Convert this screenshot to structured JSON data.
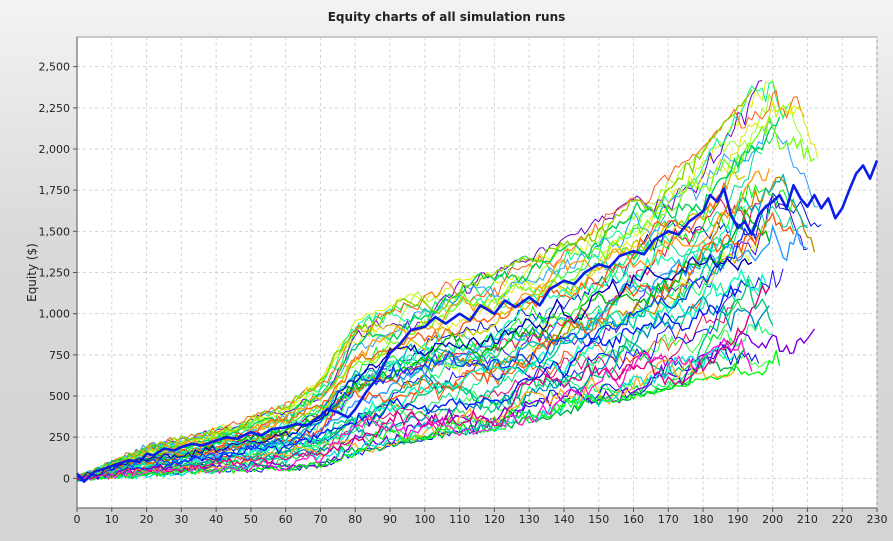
{
  "window": {
    "title": "Equity charts of all simulation runs"
  },
  "chart_data": {
    "type": "line",
    "title": "Equity charts of all simulation runs",
    "xlabel": "",
    "ylabel": "Equity ($)",
    "xlim": [
      0,
      230
    ],
    "ylim": [
      -180,
      2680
    ],
    "grid": true,
    "legend": "none",
    "x_ticks": [
      "0",
      "10",
      "20",
      "30",
      "40",
      "50",
      "60",
      "70",
      "80",
      "90",
      "100",
      "110",
      "120",
      "130",
      "140",
      "150",
      "160",
      "170",
      "180",
      "190",
      "200",
      "210",
      "220",
      "230"
    ],
    "y_ticks": [
      "0",
      "250",
      "500",
      "750",
      "1,000",
      "1,250",
      "1,500",
      "1,750",
      "2,000",
      "2,250",
      "2,500"
    ],
    "runs": 250,
    "run_envelope": {
      "x": [
        0,
        20,
        40,
        60,
        70,
        80,
        100,
        120,
        140,
        160,
        180,
        190,
        200,
        210,
        215
      ],
      "low": [
        0,
        20,
        50,
        60,
        80,
        150,
        250,
        300,
        400,
        500,
        600,
        650,
        600,
        650,
        700
      ],
      "high": [
        0,
        200,
        300,
        450,
        600,
        950,
        1150,
        1250,
        1450,
        1700,
        2000,
        2250,
        2550,
        2300,
        2000
      ]
    },
    "highlighted_series": {
      "name": "",
      "color": "#0a1ee6",
      "x": [
        0,
        2,
        5,
        8,
        12,
        15,
        18,
        20,
        22,
        25,
        28,
        30,
        33,
        36,
        40,
        43,
        46,
        50,
        53,
        56,
        60,
        63,
        66,
        70,
        72,
        75,
        78,
        80,
        83,
        86,
        90,
        93,
        96,
        100,
        103,
        106,
        110,
        113,
        116,
        120,
        123,
        126,
        130,
        133,
        136,
        140,
        143,
        146,
        150,
        153,
        156,
        160,
        163,
        166,
        170,
        173,
        176,
        180,
        182,
        184,
        186,
        188,
        190,
        192,
        194,
        196,
        198,
        200,
        202,
        204,
        206,
        208,
        210,
        212,
        214,
        216,
        218,
        220,
        222,
        224,
        226,
        228,
        230
      ],
      "y": [
        30,
        -20,
        40,
        60,
        90,
        110,
        100,
        150,
        140,
        180,
        170,
        190,
        210,
        200,
        230,
        250,
        240,
        280,
        260,
        300,
        310,
        330,
        320,
        380,
        420,
        400,
        370,
        420,
        520,
        600,
        760,
        820,
        900,
        920,
        980,
        940,
        1000,
        960,
        1050,
        1000,
        1080,
        1040,
        1100,
        1050,
        1150,
        1200,
        1180,
        1250,
        1300,
        1280,
        1350,
        1380,
        1360,
        1450,
        1500,
        1480,
        1560,
        1620,
        1720,
        1680,
        1760,
        1600,
        1520,
        1560,
        1480,
        1600,
        1650,
        1680,
        1720,
        1640,
        1780,
        1700,
        1650,
        1720,
        1640,
        1700,
        1580,
        1640,
        1750,
        1850,
        1900,
        1820,
        1930
      ]
    }
  }
}
